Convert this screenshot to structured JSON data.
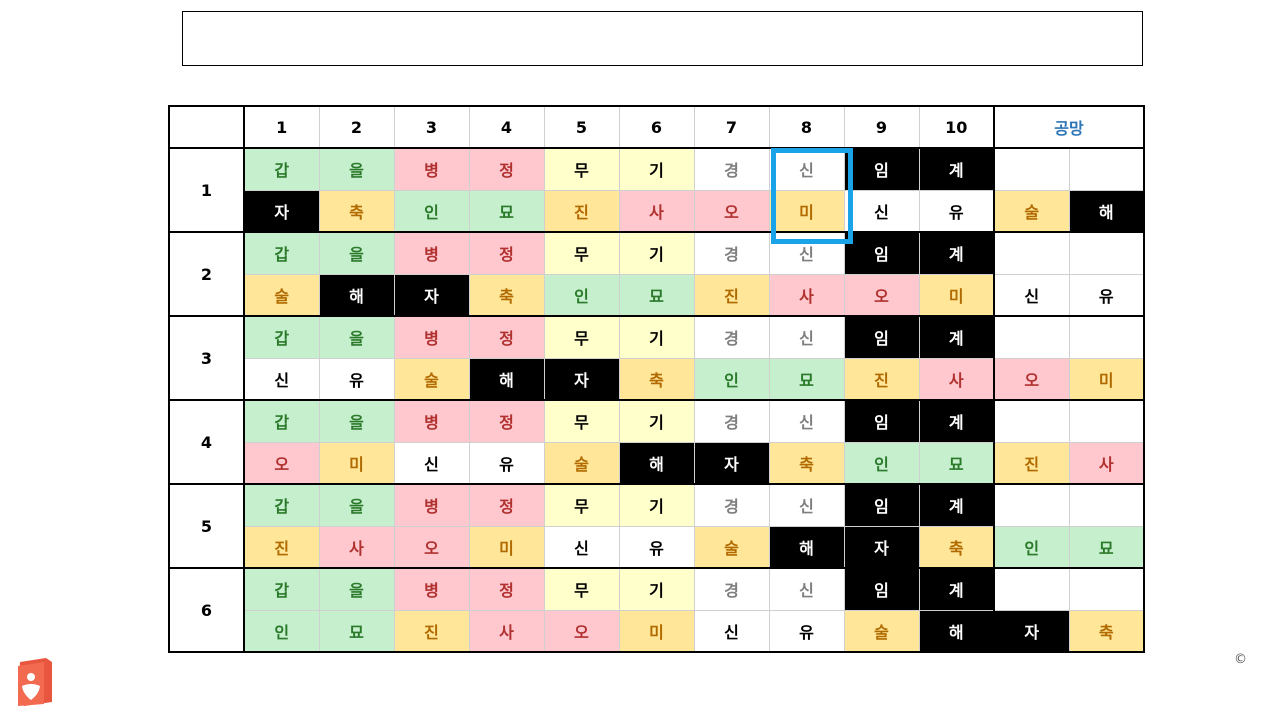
{
  "title_box_text": "",
  "header": {
    "corner": "",
    "columns": [
      "1",
      "2",
      "3",
      "4",
      "5",
      "6",
      "7",
      "8",
      "9",
      "10"
    ],
    "gongmang": "공망"
  },
  "rows": [
    {
      "label": "1",
      "top": [
        [
          "갑",
          "gw"
        ],
        [
          "을",
          "gw"
        ],
        [
          "병",
          "pk"
        ],
        [
          "정",
          "pk"
        ],
        [
          "무",
          "yl"
        ],
        [
          "기",
          "yl"
        ],
        [
          "경",
          "wg"
        ],
        [
          "신",
          "wg"
        ],
        [
          "임",
          "bk"
        ],
        [
          "계",
          "bk"
        ]
      ],
      "top_extra": [
        [
          "",
          "wh"
        ],
        [
          "",
          "wh"
        ]
      ],
      "bottom": [
        [
          "자",
          "bk"
        ],
        [
          "축",
          "or"
        ],
        [
          "인",
          "gw"
        ],
        [
          "묘",
          "gw"
        ],
        [
          "진",
          "or"
        ],
        [
          "사",
          "pk"
        ],
        [
          "오",
          "pk"
        ],
        [
          "미",
          "or"
        ],
        [
          "신",
          "wh"
        ],
        [
          "유",
          "wh"
        ]
      ],
      "bottom_extra": [
        [
          "술",
          "or"
        ],
        [
          "해",
          "bk"
        ]
      ]
    },
    {
      "label": "2",
      "top": [
        [
          "갑",
          "gw"
        ],
        [
          "을",
          "gw"
        ],
        [
          "병",
          "pk"
        ],
        [
          "정",
          "pk"
        ],
        [
          "무",
          "yl"
        ],
        [
          "기",
          "yl"
        ],
        [
          "경",
          "wg"
        ],
        [
          "신",
          "wg"
        ],
        [
          "임",
          "bk"
        ],
        [
          "계",
          "bk"
        ]
      ],
      "top_extra": [
        [
          "",
          "wh"
        ],
        [
          "",
          "wh"
        ]
      ],
      "bottom": [
        [
          "술",
          "or"
        ],
        [
          "해",
          "bk"
        ],
        [
          "자",
          "bk"
        ],
        [
          "축",
          "or"
        ],
        [
          "인",
          "gw"
        ],
        [
          "묘",
          "gw"
        ],
        [
          "진",
          "or"
        ],
        [
          "사",
          "pk"
        ],
        [
          "오",
          "pk"
        ],
        [
          "미",
          "or"
        ]
      ],
      "bottom_extra": [
        [
          "신",
          "wh"
        ],
        [
          "유",
          "wh"
        ]
      ]
    },
    {
      "label": "3",
      "top": [
        [
          "갑",
          "gw"
        ],
        [
          "을",
          "gw"
        ],
        [
          "병",
          "pk"
        ],
        [
          "정",
          "pk"
        ],
        [
          "무",
          "yl"
        ],
        [
          "기",
          "yl"
        ],
        [
          "경",
          "wg"
        ],
        [
          "신",
          "wg"
        ],
        [
          "임",
          "bk"
        ],
        [
          "계",
          "bk"
        ]
      ],
      "top_extra": [
        [
          "",
          "wh"
        ],
        [
          "",
          "wh"
        ]
      ],
      "bottom": [
        [
          "신",
          "wh"
        ],
        [
          "유",
          "wh"
        ],
        [
          "술",
          "or"
        ],
        [
          "해",
          "bk"
        ],
        [
          "자",
          "bk"
        ],
        [
          "축",
          "or"
        ],
        [
          "인",
          "gw"
        ],
        [
          "묘",
          "gw"
        ],
        [
          "진",
          "or"
        ],
        [
          "사",
          "pk"
        ]
      ],
      "bottom_extra": [
        [
          "오",
          "pk"
        ],
        [
          "미",
          "or"
        ]
      ]
    },
    {
      "label": "4",
      "top": [
        [
          "갑",
          "gw"
        ],
        [
          "을",
          "gw"
        ],
        [
          "병",
          "pk"
        ],
        [
          "정",
          "pk"
        ],
        [
          "무",
          "yl"
        ],
        [
          "기",
          "yl"
        ],
        [
          "경",
          "wg"
        ],
        [
          "신",
          "wg"
        ],
        [
          "임",
          "bk"
        ],
        [
          "계",
          "bk"
        ]
      ],
      "top_extra": [
        [
          "",
          "wh"
        ],
        [
          "",
          "wh"
        ]
      ],
      "bottom": [
        [
          "오",
          "pk"
        ],
        [
          "미",
          "or"
        ],
        [
          "신",
          "wh"
        ],
        [
          "유",
          "wh"
        ],
        [
          "술",
          "or"
        ],
        [
          "해",
          "bk"
        ],
        [
          "자",
          "bk"
        ],
        [
          "축",
          "or"
        ],
        [
          "인",
          "gw"
        ],
        [
          "묘",
          "gw"
        ]
      ],
      "bottom_extra": [
        [
          "진",
          "or"
        ],
        [
          "사",
          "pk"
        ]
      ]
    },
    {
      "label": "5",
      "top": [
        [
          "갑",
          "gw"
        ],
        [
          "을",
          "gw"
        ],
        [
          "병",
          "pk"
        ],
        [
          "정",
          "pk"
        ],
        [
          "무",
          "yl"
        ],
        [
          "기",
          "yl"
        ],
        [
          "경",
          "wg"
        ],
        [
          "신",
          "wg"
        ],
        [
          "임",
          "bk"
        ],
        [
          "계",
          "bk"
        ]
      ],
      "top_extra": [
        [
          "",
          "wh"
        ],
        [
          "",
          "wh"
        ]
      ],
      "bottom": [
        [
          "진",
          "or"
        ],
        [
          "사",
          "pk"
        ],
        [
          "오",
          "pk"
        ],
        [
          "미",
          "or"
        ],
        [
          "신",
          "wh"
        ],
        [
          "유",
          "wh"
        ],
        [
          "술",
          "or"
        ],
        [
          "해",
          "bk"
        ],
        [
          "자",
          "bk"
        ],
        [
          "축",
          "or"
        ]
      ],
      "bottom_extra": [
        [
          "인",
          "gw"
        ],
        [
          "묘",
          "gw"
        ]
      ]
    },
    {
      "label": "6",
      "top": [
        [
          "갑",
          "gw"
        ],
        [
          "을",
          "gw"
        ],
        [
          "병",
          "pk"
        ],
        [
          "정",
          "pk"
        ],
        [
          "무",
          "yl"
        ],
        [
          "기",
          "yl"
        ],
        [
          "경",
          "wg"
        ],
        [
          "신",
          "wg"
        ],
        [
          "임",
          "bk"
        ],
        [
          "계",
          "bk"
        ]
      ],
      "top_extra": [
        [
          "",
          "wh"
        ],
        [
          "",
          "wh"
        ]
      ],
      "bottom": [
        [
          "인",
          "gw"
        ],
        [
          "묘",
          "gw"
        ],
        [
          "진",
          "or"
        ],
        [
          "사",
          "pk"
        ],
        [
          "오",
          "pk"
        ],
        [
          "미",
          "or"
        ],
        [
          "신",
          "wh"
        ],
        [
          "유",
          "wh"
        ],
        [
          "술",
          "or"
        ],
        [
          "해",
          "bk"
        ]
      ],
      "bottom_extra": [
        [
          "자",
          "bk"
        ],
        [
          "축",
          "or"
        ]
      ]
    }
  ],
  "highlight_color": "#1aa3e8",
  "logo_icon": "book-heart-icon",
  "copyright": "©"
}
